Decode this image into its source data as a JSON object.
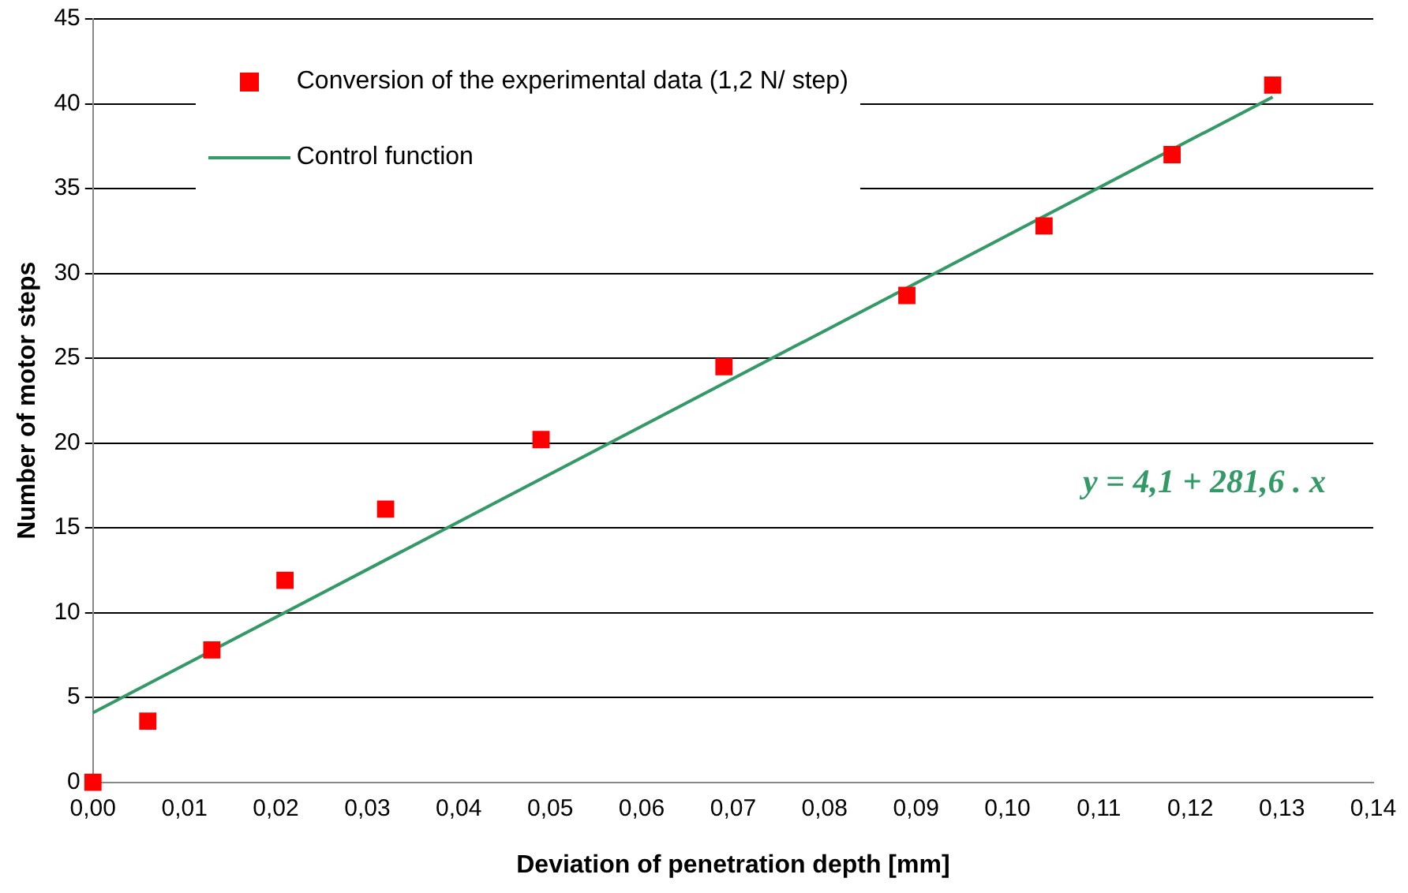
{
  "chart_data": {
    "type": "scatter",
    "xlabel": "Deviation of penetration depth [mm]",
    "ylabel": "Number of motor steps",
    "series": [
      {
        "name": "Conversion of the experimental data (1,2 N/ step)",
        "color": "#ff0000",
        "marker": "square",
        "x": [
          0,
          0.006,
          0.013,
          0.021,
          0.032,
          0.049,
          0.069,
          0.089,
          0.104,
          0.118,
          0.129
        ],
        "values": [
          0,
          3.6,
          7.8,
          11.9,
          16.1,
          20.2,
          24.5,
          28.7,
          32.8,
          37.0,
          41.1
        ]
      },
      {
        "name": "Control function",
        "type": "line",
        "color": "#339966",
        "marker": "none",
        "x": [
          0,
          0.129
        ],
        "values": [
          4.1,
          40.4
        ]
      }
    ],
    "xlim": [
      0,
      0.14
    ],
    "xticks": [
      {
        "value": 0,
        "label": "0,00"
      },
      {
        "value": 0.01,
        "label": "0,01"
      },
      {
        "value": 0.02,
        "label": "0,02"
      },
      {
        "value": 0.03,
        "label": "0,03"
      },
      {
        "value": 0.04,
        "label": "0,04"
      },
      {
        "value": 0.05,
        "label": "0,05"
      },
      {
        "value": 0.06,
        "label": "0,06"
      },
      {
        "value": 0.07,
        "label": "0,07"
      },
      {
        "value": 0.08,
        "label": "0,08"
      },
      {
        "value": 0.09,
        "label": "0,09"
      },
      {
        "value": 0.1,
        "label": "0,10"
      },
      {
        "value": 0.11,
        "label": "0,11"
      },
      {
        "value": 0.12,
        "label": "0,12"
      },
      {
        "value": 0.13,
        "label": "0,13"
      },
      {
        "value": 0.14,
        "label": "0,14"
      }
    ],
    "ylim": [
      0,
      45
    ],
    "yticks": [
      0,
      5,
      10,
      15,
      20,
      25,
      30,
      35,
      40,
      45
    ],
    "grid": "y",
    "legend": "top left",
    "annotations": [
      "y = 4,1 + 281,6 . x"
    ]
  }
}
